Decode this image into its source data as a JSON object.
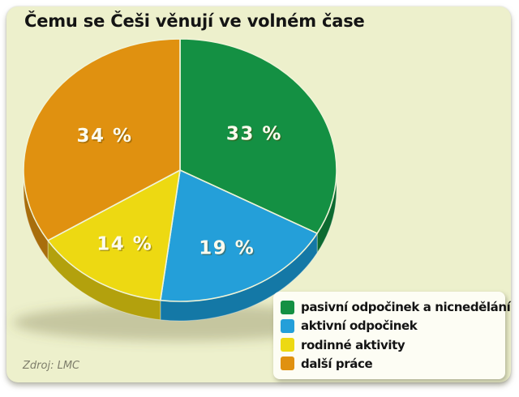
{
  "page": {
    "title": "Čemu se Češi věnují ve volném čase",
    "source": "Zdroj: LMC",
    "background_color": "#ffffff",
    "card_color": "#edf0cc"
  },
  "chart_data": {
    "type": "pie",
    "style": "3d",
    "title": "Čemu se Češi věnují ve volném čase",
    "unit": "%",
    "start_angle_deg": 0,
    "direction": "clockwise",
    "legend_position": "bottom-right",
    "source": "Zdroj: LMC",
    "slices": [
      {
        "label": "pasivní odpočinek a nicnedělání",
        "value": 33,
        "display": "33 %",
        "color": "#149043",
        "side_color": "#0d6a30"
      },
      {
        "label": "aktivní odpočinek",
        "value": 19,
        "display": "19 %",
        "color": "#249fd9",
        "side_color": "#1478a6"
      },
      {
        "label": "rodinné aktivity",
        "value": 14,
        "display": "14 %",
        "color": "#edd912",
        "side_color": "#b3a10d"
      },
      {
        "label": "další práce",
        "value": 34,
        "display": "34 %",
        "color": "#e09110",
        "side_color": "#a86e0c"
      }
    ]
  }
}
